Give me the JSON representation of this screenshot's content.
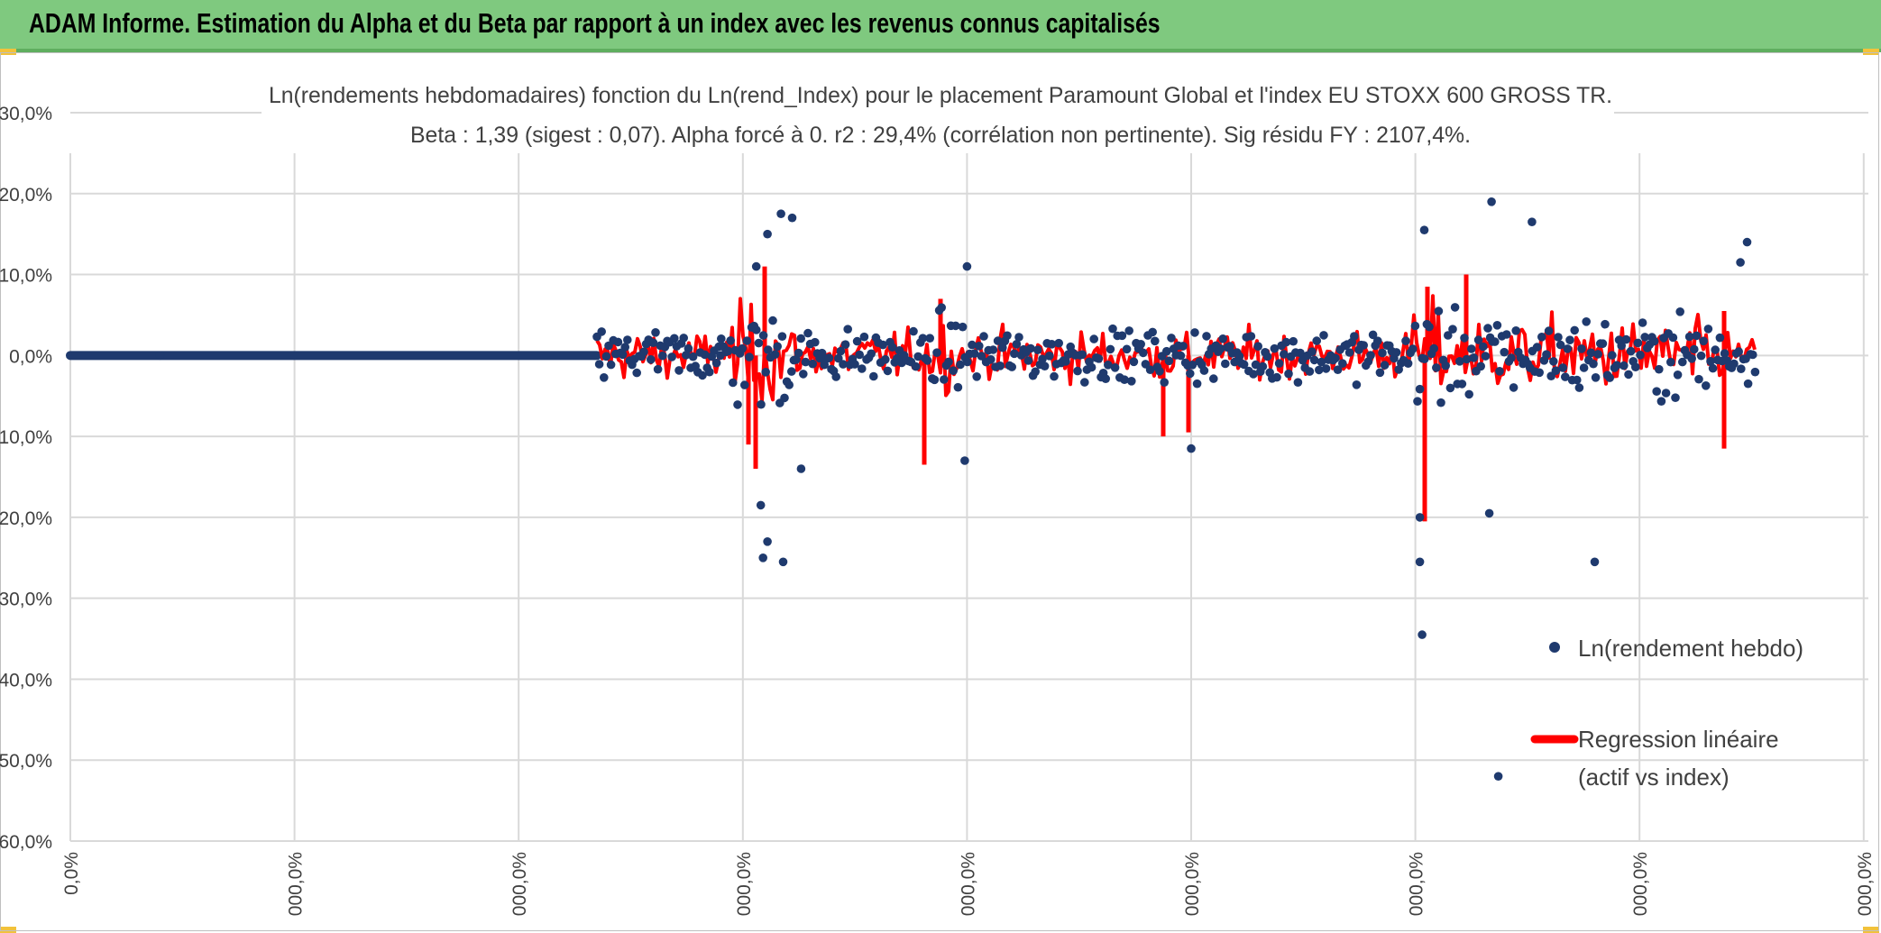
{
  "header": {
    "title": "ADAM Informe. Estimation du Alpha et du Beta par rapport à un index avec les revenus connus capitalisés",
    "background": "#7fc97f"
  },
  "chart_data": {
    "type": "scatter",
    "title": "Ln(rendements hebdomadaires) fonction du Ln(rend_Index) pour le placement Paramount Global et l'index EU STOXX 600 GROSS TR.",
    "subtitle": "Beta : 1,39 (sigest : 0,07). Alpha forcé à 0. r2 : 29,4% (corrélation non pertinente). Sig résidu FY : 2107,4%.",
    "xlabel": "",
    "ylabel": "",
    "ylim": [
      -60,
      30
    ],
    "y_ticks": [
      "30,0%",
      "20,0%",
      "10,0%",
      "0,0%",
      "-10,0%",
      "-20,0%",
      "-30,0%",
      "-40,0%",
      "-50,0%",
      "-60,0%"
    ],
    "x_ticks": [
      "0,0%",
      "000,0%",
      "000,0%",
      "000,0%",
      "000,0%",
      "000,0%",
      "000,0%",
      "000,0%",
      "000,0%"
    ],
    "grid": true,
    "legend_position": "bottom-right",
    "series": [
      {
        "name": "Ln(rendement hebdo)",
        "color": "#1f3a6e",
        "marker": "dot",
        "notable_points": [
          {
            "x": 0.4,
            "y": 0.0
          },
          {
            "x": 2.9,
            "y": 0.0
          },
          {
            "x": 3.06,
            "y": 11.0
          },
          {
            "x": 3.11,
            "y": 15.0
          },
          {
            "x": 3.17,
            "y": 17.5
          },
          {
            "x": 3.22,
            "y": 17.0
          },
          {
            "x": 3.08,
            "y": -18.5
          },
          {
            "x": 3.09,
            "y": -25.0
          },
          {
            "x": 3.11,
            "y": -23.0
          },
          {
            "x": 3.18,
            "y": -25.5
          },
          {
            "x": 3.26,
            "y": -14.0
          },
          {
            "x": 3.99,
            "y": -13.0
          },
          {
            "x": 4.0,
            "y": 11.0
          },
          {
            "x": 5.0,
            "y": -11.5
          },
          {
            "x": 6.02,
            "y": -20.0
          },
          {
            "x": 6.02,
            "y": -25.5
          },
          {
            "x": 6.03,
            "y": -34.5
          },
          {
            "x": 6.04,
            "y": 15.5
          },
          {
            "x": 6.34,
            "y": 19.0
          },
          {
            "x": 6.33,
            "y": -19.5
          },
          {
            "x": 6.52,
            "y": 16.5
          },
          {
            "x": 6.8,
            "y": -25.5
          },
          {
            "x": 6.37,
            "y": -52.0
          },
          {
            "x": 7.48,
            "y": 14.0
          },
          {
            "x": 7.45,
            "y": 11.5
          }
        ]
      },
      {
        "name": "Regression linéaire",
        "name_line2": "(actif vs index)",
        "color": "#ff0000",
        "type": "line"
      }
    ]
  }
}
